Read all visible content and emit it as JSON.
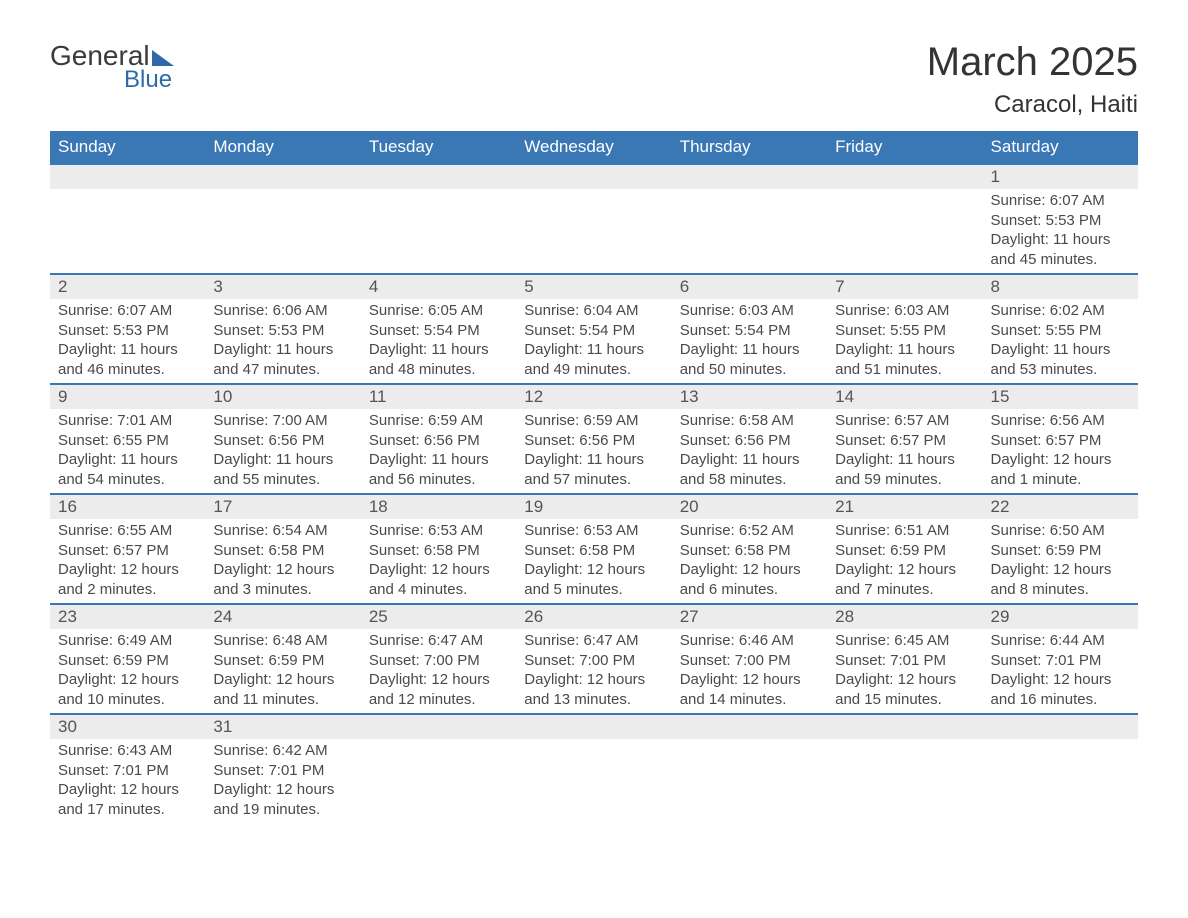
{
  "branding": {
    "logo_word1": "General",
    "logo_word2": "Blue",
    "brand_color": "#2e6aa8"
  },
  "header": {
    "month_title": "March 2025",
    "location": "Caracol, Haiti"
  },
  "styling": {
    "header_bg": "#3a77b5",
    "header_text": "#ffffff",
    "daynum_bg": "#ececec",
    "row_border": "#3a77b5",
    "body_text": "#4a4a4a",
    "title_fontsize": 40,
    "location_fontsize": 24,
    "weekday_fontsize": 17,
    "cell_fontsize": 15
  },
  "weekdays": [
    "Sunday",
    "Monday",
    "Tuesday",
    "Wednesday",
    "Thursday",
    "Friday",
    "Saturday"
  ],
  "weeks": [
    [
      null,
      null,
      null,
      null,
      null,
      null,
      {
        "n": "1",
        "sr": "Sunrise: 6:07 AM",
        "ss": "Sunset: 5:53 PM",
        "dl": "Daylight: 11 hours and 45 minutes."
      }
    ],
    [
      {
        "n": "2",
        "sr": "Sunrise: 6:07 AM",
        "ss": "Sunset: 5:53 PM",
        "dl": "Daylight: 11 hours and 46 minutes."
      },
      {
        "n": "3",
        "sr": "Sunrise: 6:06 AM",
        "ss": "Sunset: 5:53 PM",
        "dl": "Daylight: 11 hours and 47 minutes."
      },
      {
        "n": "4",
        "sr": "Sunrise: 6:05 AM",
        "ss": "Sunset: 5:54 PM",
        "dl": "Daylight: 11 hours and 48 minutes."
      },
      {
        "n": "5",
        "sr": "Sunrise: 6:04 AM",
        "ss": "Sunset: 5:54 PM",
        "dl": "Daylight: 11 hours and 49 minutes."
      },
      {
        "n": "6",
        "sr": "Sunrise: 6:03 AM",
        "ss": "Sunset: 5:54 PM",
        "dl": "Daylight: 11 hours and 50 minutes."
      },
      {
        "n": "7",
        "sr": "Sunrise: 6:03 AM",
        "ss": "Sunset: 5:55 PM",
        "dl": "Daylight: 11 hours and 51 minutes."
      },
      {
        "n": "8",
        "sr": "Sunrise: 6:02 AM",
        "ss": "Sunset: 5:55 PM",
        "dl": "Daylight: 11 hours and 53 minutes."
      }
    ],
    [
      {
        "n": "9",
        "sr": "Sunrise: 7:01 AM",
        "ss": "Sunset: 6:55 PM",
        "dl": "Daylight: 11 hours and 54 minutes."
      },
      {
        "n": "10",
        "sr": "Sunrise: 7:00 AM",
        "ss": "Sunset: 6:56 PM",
        "dl": "Daylight: 11 hours and 55 minutes."
      },
      {
        "n": "11",
        "sr": "Sunrise: 6:59 AM",
        "ss": "Sunset: 6:56 PM",
        "dl": "Daylight: 11 hours and 56 minutes."
      },
      {
        "n": "12",
        "sr": "Sunrise: 6:59 AM",
        "ss": "Sunset: 6:56 PM",
        "dl": "Daylight: 11 hours and 57 minutes."
      },
      {
        "n": "13",
        "sr": "Sunrise: 6:58 AM",
        "ss": "Sunset: 6:56 PM",
        "dl": "Daylight: 11 hours and 58 minutes."
      },
      {
        "n": "14",
        "sr": "Sunrise: 6:57 AM",
        "ss": "Sunset: 6:57 PM",
        "dl": "Daylight: 11 hours and 59 minutes."
      },
      {
        "n": "15",
        "sr": "Sunrise: 6:56 AM",
        "ss": "Sunset: 6:57 PM",
        "dl": "Daylight: 12 hours and 1 minute."
      }
    ],
    [
      {
        "n": "16",
        "sr": "Sunrise: 6:55 AM",
        "ss": "Sunset: 6:57 PM",
        "dl": "Daylight: 12 hours and 2 minutes."
      },
      {
        "n": "17",
        "sr": "Sunrise: 6:54 AM",
        "ss": "Sunset: 6:58 PM",
        "dl": "Daylight: 12 hours and 3 minutes."
      },
      {
        "n": "18",
        "sr": "Sunrise: 6:53 AM",
        "ss": "Sunset: 6:58 PM",
        "dl": "Daylight: 12 hours and 4 minutes."
      },
      {
        "n": "19",
        "sr": "Sunrise: 6:53 AM",
        "ss": "Sunset: 6:58 PM",
        "dl": "Daylight: 12 hours and 5 minutes."
      },
      {
        "n": "20",
        "sr": "Sunrise: 6:52 AM",
        "ss": "Sunset: 6:58 PM",
        "dl": "Daylight: 12 hours and 6 minutes."
      },
      {
        "n": "21",
        "sr": "Sunrise: 6:51 AM",
        "ss": "Sunset: 6:59 PM",
        "dl": "Daylight: 12 hours and 7 minutes."
      },
      {
        "n": "22",
        "sr": "Sunrise: 6:50 AM",
        "ss": "Sunset: 6:59 PM",
        "dl": "Daylight: 12 hours and 8 minutes."
      }
    ],
    [
      {
        "n": "23",
        "sr": "Sunrise: 6:49 AM",
        "ss": "Sunset: 6:59 PM",
        "dl": "Daylight: 12 hours and 10 minutes."
      },
      {
        "n": "24",
        "sr": "Sunrise: 6:48 AM",
        "ss": "Sunset: 6:59 PM",
        "dl": "Daylight: 12 hours and 11 minutes."
      },
      {
        "n": "25",
        "sr": "Sunrise: 6:47 AM",
        "ss": "Sunset: 7:00 PM",
        "dl": "Daylight: 12 hours and 12 minutes."
      },
      {
        "n": "26",
        "sr": "Sunrise: 6:47 AM",
        "ss": "Sunset: 7:00 PM",
        "dl": "Daylight: 12 hours and 13 minutes."
      },
      {
        "n": "27",
        "sr": "Sunrise: 6:46 AM",
        "ss": "Sunset: 7:00 PM",
        "dl": "Daylight: 12 hours and 14 minutes."
      },
      {
        "n": "28",
        "sr": "Sunrise: 6:45 AM",
        "ss": "Sunset: 7:01 PM",
        "dl": "Daylight: 12 hours and 15 minutes."
      },
      {
        "n": "29",
        "sr": "Sunrise: 6:44 AM",
        "ss": "Sunset: 7:01 PM",
        "dl": "Daylight: 12 hours and 16 minutes."
      }
    ],
    [
      {
        "n": "30",
        "sr": "Sunrise: 6:43 AM",
        "ss": "Sunset: 7:01 PM",
        "dl": "Daylight: 12 hours and 17 minutes."
      },
      {
        "n": "31",
        "sr": "Sunrise: 6:42 AM",
        "ss": "Sunset: 7:01 PM",
        "dl": "Daylight: 12 hours and 19 minutes."
      },
      null,
      null,
      null,
      null,
      null
    ]
  ]
}
